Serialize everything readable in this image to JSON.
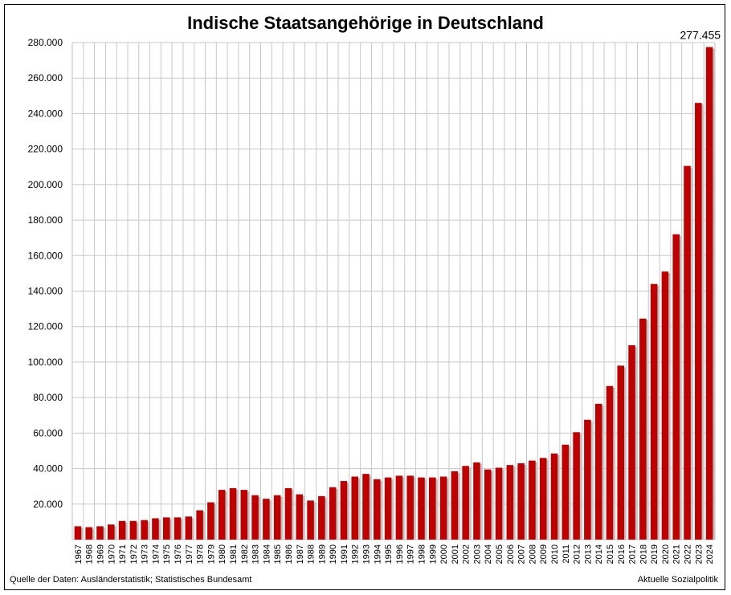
{
  "chart_data": {
    "type": "bar",
    "title": "Indische Staatsangehörige in Deutschland",
    "xlabel": "",
    "ylabel": "",
    "ylim": [
      0,
      280000
    ],
    "y_ticks": [
      20000,
      40000,
      60000,
      80000,
      100000,
      120000,
      140000,
      160000,
      180000,
      200000,
      220000,
      240000,
      260000,
      280000
    ],
    "y_tick_labels": [
      "20.000",
      "40.000",
      "60.000",
      "80.000",
      "100.000",
      "120.000",
      "140.000",
      "160.000",
      "180.000",
      "200.000",
      "220.000",
      "240.000",
      "260.000",
      "280.000"
    ],
    "grid": true,
    "bar_color": "#c00000",
    "categories": [
      "1967",
      "1968",
      "1969",
      "1970",
      "1971",
      "1972",
      "1973",
      "1974",
      "1975",
      "1976",
      "1977",
      "1978",
      "1979",
      "1980",
      "1981",
      "1982",
      "1983",
      "1984",
      "1985",
      "1986",
      "1987",
      "1988",
      "1989",
      "1990",
      "1991",
      "1992",
      "1993",
      "1994",
      "1995",
      "1996",
      "1997",
      "1998",
      "1999",
      "2000",
      "2001",
      "2002",
      "2003",
      "2004",
      "2005",
      "2006",
      "2007",
      "2008",
      "2009",
      "2010",
      "2011",
      "2012",
      "2013",
      "2014",
      "2015",
      "2016",
      "2017",
      "2018",
      "2019",
      "2020",
      "2021",
      "2022",
      "2023",
      "2024"
    ],
    "values": [
      7500,
      7000,
      7500,
      8500,
      10500,
      10500,
      11000,
      12000,
      12500,
      12500,
      13000,
      16500,
      21000,
      28000,
      29000,
      28000,
      25000,
      23000,
      25000,
      29000,
      25500,
      22000,
      24500,
      29500,
      33000,
      35500,
      37000,
      34000,
      35000,
      36000,
      36000,
      35000,
      35000,
      35500,
      38500,
      41500,
      43500,
      39500,
      40500,
      42000,
      43000,
      44500,
      46000,
      48500,
      53500,
      60500,
      67500,
      76500,
      86500,
      98000,
      109500,
      124500,
      144000,
      151000,
      172000,
      210500,
      246000,
      277455
    ],
    "annotations": [
      {
        "category": "2024",
        "label": "277.455"
      }
    ]
  },
  "footer": {
    "source": "Quelle der Daten: Ausländerstatistik; Statistisches Bundesamt",
    "publisher": "Aktuelle Sozialpolitik"
  }
}
